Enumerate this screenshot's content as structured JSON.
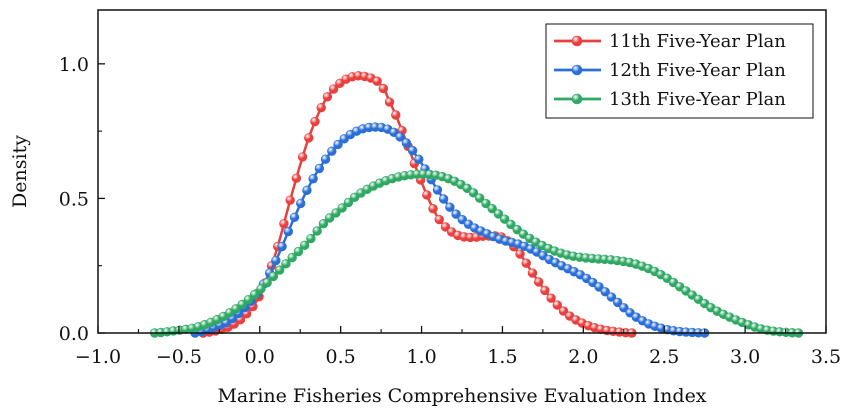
{
  "chart_data": {
    "type": "line",
    "title": "",
    "xlabel": "Marine Fisheries Comprehensive Evaluation Index",
    "ylabel": "Density",
    "xlim": [
      -1.0,
      3.5
    ],
    "ylim": [
      0.0,
      1.2
    ],
    "xticks": [
      "−1.0",
      "−0.5",
      "0.0",
      "0.5",
      "1.0",
      "1.5",
      "2.0",
      "2.5",
      "3.0",
      "3.5"
    ],
    "xtick_values": [
      -1.0,
      -0.5,
      0.0,
      0.5,
      1.0,
      1.5,
      2.0,
      2.5,
      3.0,
      3.5
    ],
    "yticks": [
      "0.0",
      "0.5",
      "1.0"
    ],
    "ytick_values": [
      0.0,
      0.5,
      1.0
    ],
    "grid": false,
    "legend_position": "top-right",
    "series": [
      {
        "name": "11th Five-Year Plan",
        "color": "#e8403e",
        "x": [
          -0.35,
          -0.2,
          -0.1,
          0.0,
          0.1,
          0.2,
          0.3,
          0.4,
          0.5,
          0.6,
          0.7,
          0.75,
          0.8,
          0.9,
          1.0,
          1.1,
          1.2,
          1.3,
          1.4,
          1.5,
          1.6,
          1.7,
          1.8,
          1.9,
          2.0,
          2.1,
          2.2,
          2.3
        ],
        "y": [
          0.0,
          0.02,
          0.06,
          0.14,
          0.3,
          0.52,
          0.72,
          0.86,
          0.93,
          0.955,
          0.945,
          0.92,
          0.86,
          0.72,
          0.56,
          0.43,
          0.37,
          0.355,
          0.36,
          0.355,
          0.3,
          0.21,
          0.13,
          0.07,
          0.035,
          0.015,
          0.005,
          0.0
        ]
      },
      {
        "name": "12th Five-Year Plan",
        "color": "#2b6fd6",
        "x": [
          -0.4,
          -0.2,
          -0.1,
          0.0,
          0.1,
          0.2,
          0.3,
          0.4,
          0.5,
          0.6,
          0.7,
          0.8,
          0.9,
          1.0,
          1.1,
          1.2,
          1.3,
          1.4,
          1.5,
          1.6,
          1.7,
          1.8,
          1.9,
          2.0,
          2.1,
          2.2,
          2.3,
          2.4,
          2.5,
          2.6,
          2.75
        ],
        "y": [
          0.0,
          0.04,
          0.09,
          0.16,
          0.27,
          0.41,
          0.54,
          0.64,
          0.71,
          0.75,
          0.765,
          0.755,
          0.71,
          0.63,
          0.53,
          0.45,
          0.4,
          0.37,
          0.345,
          0.33,
          0.305,
          0.27,
          0.24,
          0.21,
          0.17,
          0.12,
          0.07,
          0.035,
          0.015,
          0.005,
          0.0
        ]
      },
      {
        "name": "13th Five-Year Plan",
        "color": "#2fa864",
        "x": [
          -0.65,
          -0.5,
          -0.4,
          -0.3,
          -0.2,
          -0.1,
          0.0,
          0.1,
          0.2,
          0.3,
          0.4,
          0.5,
          0.6,
          0.7,
          0.8,
          0.9,
          1.0,
          1.1,
          1.2,
          1.3,
          1.4,
          1.5,
          1.6,
          1.7,
          1.8,
          1.9,
          2.0,
          2.1,
          2.2,
          2.3,
          2.4,
          2.5,
          2.6,
          2.7,
          2.8,
          2.9,
          3.0,
          3.1,
          3.2,
          3.33
        ],
        "y": [
          0.0,
          0.01,
          0.02,
          0.04,
          0.07,
          0.11,
          0.16,
          0.22,
          0.28,
          0.34,
          0.41,
          0.46,
          0.51,
          0.545,
          0.57,
          0.585,
          0.59,
          0.585,
          0.565,
          0.53,
          0.48,
          0.43,
          0.38,
          0.34,
          0.31,
          0.29,
          0.28,
          0.275,
          0.27,
          0.26,
          0.24,
          0.21,
          0.17,
          0.13,
          0.09,
          0.06,
          0.035,
          0.015,
          0.005,
          0.0
        ]
      }
    ]
  }
}
